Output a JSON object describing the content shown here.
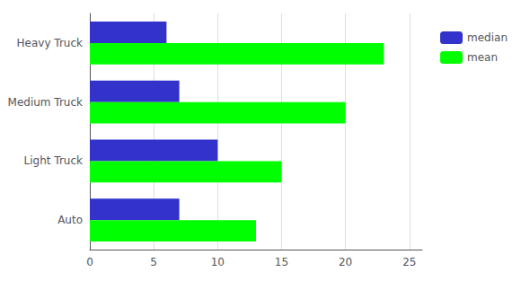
{
  "chart_data": {
    "type": "bar",
    "orientation": "horizontal",
    "categories": [
      "Auto",
      "Light Truck",
      "Medium Truck",
      "Heavy Truck"
    ],
    "series": [
      {
        "name": "median",
        "color": "#3333cc",
        "values": [
          7,
          10,
          7,
          6
        ]
      },
      {
        "name": "mean",
        "color": "#00ff00",
        "values": [
          13,
          15,
          20,
          23
        ]
      }
    ],
    "xlim": [
      0,
      26
    ],
    "xticks": [
      0,
      5,
      10,
      15,
      20,
      25
    ],
    "grid": true,
    "legend": "right"
  }
}
